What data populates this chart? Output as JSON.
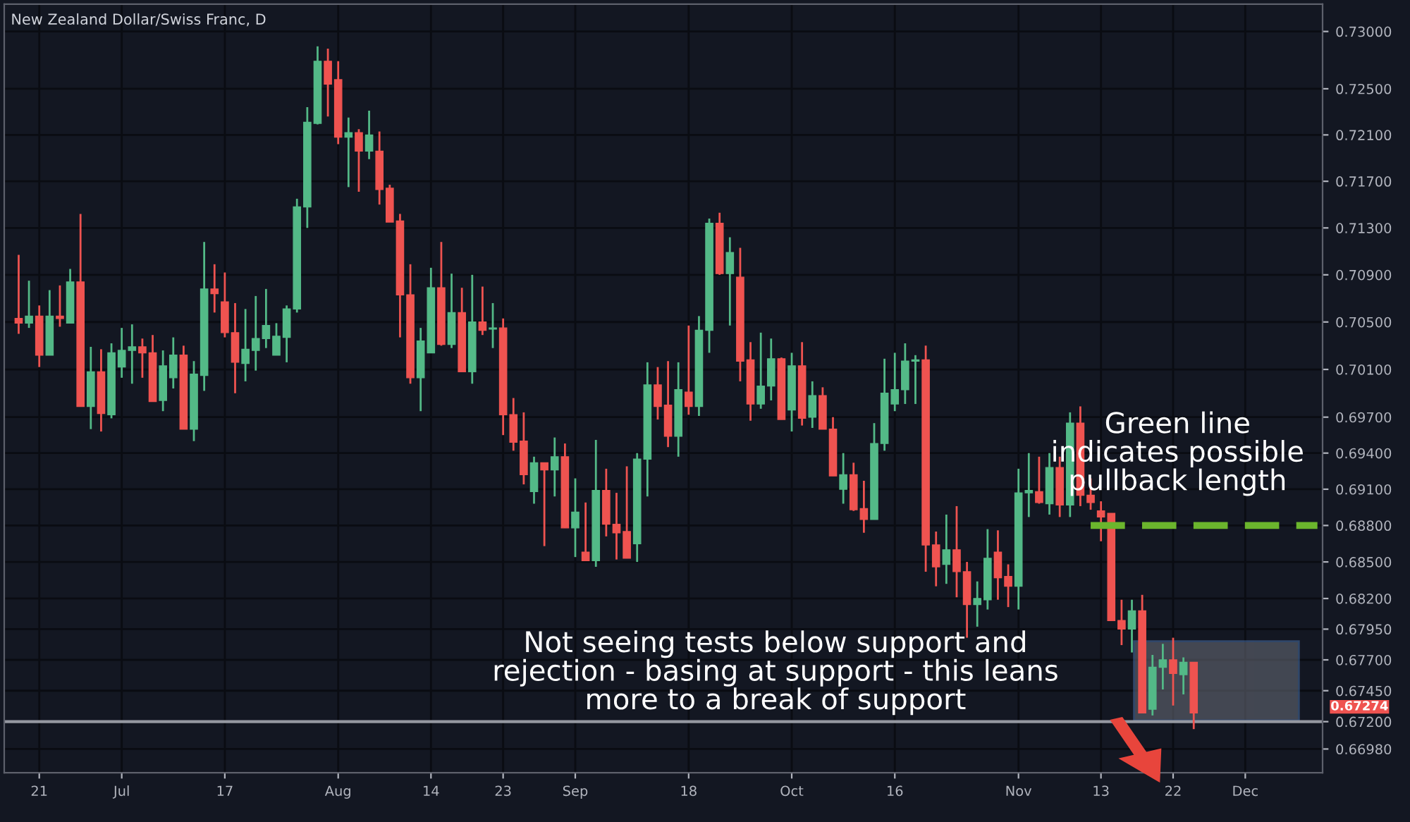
{
  "chart_data": {
    "type": "candlestick",
    "title": "New Zealand Dollar/Swiss Franc, D",
    "categories": [
      null,
      null,
      "21",
      null,
      null,
      null,
      null,
      null,
      null,
      null,
      "Jul",
      null,
      null,
      null,
      null,
      null,
      null,
      null,
      null,
      null,
      "17",
      null,
      null,
      null,
      null,
      null,
      null,
      null,
      null,
      null,
      null,
      "Aug",
      null,
      null,
      null,
      null,
      null,
      null,
      null,
      null,
      "14",
      null,
      null,
      null,
      null,
      null,
      null,
      "23",
      null,
      null,
      null,
      null,
      null,
      null,
      "Sep",
      null,
      null,
      null,
      null,
      null,
      null,
      null,
      null,
      null,
      null,
      "18",
      null,
      null,
      null,
      null,
      null,
      null,
      null,
      null,
      null,
      "Oct",
      null,
      null,
      null,
      null,
      null,
      null,
      null,
      null,
      null,
      "16",
      null,
      null,
      null,
      null,
      null,
      null,
      null,
      null,
      null,
      null,
      null,
      "Nov",
      null,
      null,
      null,
      null,
      null,
      null,
      null,
      "13",
      null,
      null,
      null,
      null,
      null,
      null,
      "22",
      null,
      null,
      null,
      null,
      null,
      null,
      "Dec",
      null,
      null,
      null,
      null,
      null,
      null,
      null
    ],
    "ohlc": [
      [
        0.7053,
        0.7107,
        0.704,
        0.7049
      ],
      [
        0.7049,
        0.7085,
        0.7045,
        0.7055
      ],
      [
        0.7055,
        0.7064,
        0.7012,
        0.7022
      ],
      [
        0.7022,
        0.7077,
        0.7022,
        0.7055
      ],
      [
        0.7055,
        0.7081,
        0.7046,
        0.7053
      ],
      [
        0.7049,
        0.7095,
        0.7049,
        0.7084
      ],
      [
        0.7084,
        0.7142,
        0.6979,
        0.6979
      ],
      [
        0.6979,
        0.7029,
        0.696,
        0.7008
      ],
      [
        0.7008,
        0.7027,
        0.6958,
        0.6973
      ],
      [
        0.6972,
        0.7032,
        0.6969,
        0.7024
      ],
      [
        0.7012,
        0.7045,
        0.7003,
        0.7026
      ],
      [
        0.7026,
        0.7048,
        0.6998,
        0.7029
      ],
      [
        0.7029,
        0.7036,
        0.7003,
        0.7024
      ],
      [
        0.7024,
        0.7039,
        0.6983,
        0.6983
      ],
      [
        0.6984,
        0.7026,
        0.6975,
        0.7013
      ],
      [
        0.7003,
        0.7037,
        0.6994,
        0.7022
      ],
      [
        0.7022,
        0.703,
        0.696,
        0.696
      ],
      [
        0.696,
        0.7017,
        0.695,
        0.7006
      ],
      [
        0.7005,
        0.7118,
        0.6992,
        0.7078
      ],
      [
        0.7078,
        0.7099,
        0.7058,
        0.7074
      ],
      [
        0.7067,
        0.7092,
        0.7037,
        0.7041
      ],
      [
        0.7041,
        0.7066,
        0.699,
        0.7016
      ],
      [
        0.7015,
        0.7061,
        0.7,
        0.7027
      ],
      [
        0.7026,
        0.7072,
        0.7009,
        0.7036
      ],
      [
        0.7036,
        0.7078,
        0.7028,
        0.7047
      ],
      [
        0.7022,
        0.7049,
        0.7022,
        0.7038
      ],
      [
        0.7037,
        0.7064,
        0.7016,
        0.7061
      ],
      [
        0.7061,
        0.7155,
        0.7058,
        0.7148
      ],
      [
        0.7148,
        0.7234,
        0.713,
        0.7221
      ],
      [
        0.722,
        0.7287,
        0.7219,
        0.7274
      ],
      [
        0.7274,
        0.7285,
        0.7226,
        0.7254
      ],
      [
        0.7258,
        0.7274,
        0.7202,
        0.7208
      ],
      [
        0.7208,
        0.7225,
        0.7165,
        0.7212
      ],
      [
        0.7212,
        0.7215,
        0.7161,
        0.7196
      ],
      [
        0.7196,
        0.7231,
        0.7189,
        0.721
      ],
      [
        0.7196,
        0.7213,
        0.715,
        0.7163
      ],
      [
        0.7164,
        0.7167,
        0.7135,
        0.7135
      ],
      [
        0.7136,
        0.7142,
        0.7037,
        0.7073
      ],
      [
        0.7073,
        0.7099,
        0.6998,
        0.7003
      ],
      [
        0.7003,
        0.7045,
        0.6975,
        0.7034
      ],
      [
        0.7024,
        0.7096,
        0.7024,
        0.7079
      ],
      [
        0.7079,
        0.7118,
        0.703,
        0.7031
      ],
      [
        0.7031,
        0.7091,
        0.7028,
        0.7058
      ],
      [
        0.7058,
        0.7079,
        0.7008,
        0.7008
      ],
      [
        0.7008,
        0.709,
        0.6998,
        0.705
      ],
      [
        0.705,
        0.708,
        0.7039,
        0.7043
      ],
      [
        0.7044,
        0.7066,
        0.7028,
        0.7045
      ],
      [
        0.7045,
        0.7053,
        0.6955,
        0.6972
      ],
      [
        0.6972,
        0.6986,
        0.6942,
        0.6949
      ],
      [
        0.695,
        0.6974,
        0.6914,
        0.6922
      ],
      [
        0.6908,
        0.6937,
        0.6898,
        0.6932
      ],
      [
        0.6932,
        0.6932,
        0.6863,
        0.6926
      ],
      [
        0.6926,
        0.6953,
        0.6904,
        0.6937
      ],
      [
        0.6937,
        0.6948,
        0.6878,
        0.6878
      ],
      [
        0.6878,
        0.6919,
        0.6854,
        0.6891
      ],
      [
        0.6858,
        0.6899,
        0.6851,
        0.6851
      ],
      [
        0.6851,
        0.6951,
        0.6846,
        0.6909
      ],
      [
        0.6909,
        0.6927,
        0.6871,
        0.6881
      ],
      [
        0.6881,
        0.6907,
        0.6852,
        0.6874
      ],
      [
        0.6875,
        0.6929,
        0.6853,
        0.6853
      ],
      [
        0.6865,
        0.694,
        0.685,
        0.6935
      ],
      [
        0.6935,
        0.7016,
        0.6904,
        0.6997
      ],
      [
        0.6997,
        0.7012,
        0.6968,
        0.6979
      ],
      [
        0.698,
        0.7017,
        0.6945,
        0.6954
      ],
      [
        0.6954,
        0.7016,
        0.6937,
        0.6993
      ],
      [
        0.6991,
        0.7047,
        0.6972,
        0.6979
      ],
      [
        0.6979,
        0.7055,
        0.6971,
        0.7043
      ],
      [
        0.7043,
        0.7138,
        0.7024,
        0.7134
      ],
      [
        0.7134,
        0.7143,
        0.709,
        0.7091
      ],
      [
        0.7091,
        0.7122,
        0.7047,
        0.7109
      ],
      [
        0.7088,
        0.7113,
        0.7,
        0.7017
      ],
      [
        0.7018,
        0.7033,
        0.6967,
        0.6981
      ],
      [
        0.6981,
        0.7041,
        0.6977,
        0.6996
      ],
      [
        0.6996,
        0.7036,
        0.6984,
        0.7019
      ],
      [
        0.7019,
        0.702,
        0.6968,
        0.6968
      ],
      [
        0.6976,
        0.7024,
        0.6958,
        0.7013
      ],
      [
        0.7013,
        0.7033,
        0.6963,
        0.6969
      ],
      [
        0.697,
        0.7,
        0.6961,
        0.6988
      ],
      [
        0.6988,
        0.6995,
        0.696,
        0.696
      ],
      [
        0.696,
        0.697,
        0.6921,
        0.6921
      ],
      [
        0.691,
        0.694,
        0.6898,
        0.6922
      ],
      [
        0.6922,
        0.6932,
        0.6892,
        0.6893
      ],
      [
        0.6894,
        0.6917,
        0.6874,
        0.6885
      ],
      [
        0.6885,
        0.6965,
        0.6885,
        0.6948
      ],
      [
        0.6948,
        0.7019,
        0.6942,
        0.699
      ],
      [
        0.6981,
        0.7024,
        0.6975,
        0.6993
      ],
      [
        0.6993,
        0.7032,
        0.6981,
        0.7017
      ],
      [
        0.7017,
        0.7022,
        0.6981,
        0.7018
      ],
      [
        0.7018,
        0.703,
        0.6842,
        0.6864
      ],
      [
        0.6864,
        0.6875,
        0.683,
        0.6846
      ],
      [
        0.6848,
        0.6889,
        0.6832,
        0.686
      ],
      [
        0.686,
        0.6896,
        0.6821,
        0.6842
      ],
      [
        0.6842,
        0.685,
        0.6788,
        0.6815
      ],
      [
        0.6815,
        0.6834,
        0.6797,
        0.682
      ],
      [
        0.6819,
        0.6877,
        0.6811,
        0.6853
      ],
      [
        0.6858,
        0.6876,
        0.6819,
        0.6837
      ],
      [
        0.6838,
        0.6848,
        0.6813,
        0.683
      ],
      [
        0.683,
        0.6927,
        0.6811,
        0.6907
      ],
      [
        0.6907,
        0.694,
        0.6887,
        0.6909
      ],
      [
        0.6908,
        0.6937,
        0.6898,
        0.6899
      ],
      [
        0.6898,
        0.694,
        0.6889,
        0.6928
      ],
      [
        0.6928,
        0.6937,
        0.6887,
        0.6897
      ],
      [
        0.6897,
        0.6974,
        0.6887,
        0.6965
      ],
      [
        0.6965,
        0.6979,
        0.6896,
        0.6905
      ],
      [
        0.6905,
        0.6919,
        0.6893,
        0.6899
      ],
      [
        0.6892,
        0.69,
        0.6867,
        0.6887
      ],
      [
        0.689,
        0.689,
        0.6802,
        0.6802
      ],
      [
        0.6802,
        0.6819,
        0.6782,
        0.6795
      ],
      [
        0.6795,
        0.6819,
        0.6776,
        0.681
      ],
      [
        0.681,
        0.6823,
        0.6727,
        0.6727
      ],
      [
        0.673,
        0.6774,
        0.6725,
        0.6764
      ],
      [
        0.6764,
        0.6783,
        0.6746,
        0.677
      ],
      [
        0.677,
        0.6788,
        0.6733,
        0.6759
      ],
      [
        0.6758,
        0.6772,
        0.6742,
        0.6768
      ],
      [
        0.6768,
        0.6768,
        0.6714,
        0.6727
      ],
      null,
      null,
      null,
      null,
      null,
      null,
      null,
      null,
      null,
      null,
      null,
      null
    ],
    "colors": [
      "#ef5350",
      "#53b987",
      "#ef5350",
      "#53b987",
      "#ef5350",
      "#53b987",
      "#ef5350",
      "#53b987",
      "#ef5350",
      "#53b987",
      "#53b987",
      "#53b987",
      "#ef5350",
      "#ef5350",
      "#53b987",
      "#53b987",
      "#ef5350",
      "#53b987",
      "#53b987",
      "#ef5350",
      "#ef5350",
      "#ef5350",
      "#53b987",
      "#53b987",
      "#53b987",
      "#53b987",
      "#53b987",
      "#53b987",
      "#53b987",
      "#53b987",
      "#ef5350",
      "#ef5350",
      "#53b987",
      "#ef5350",
      "#53b987",
      "#ef5350",
      "#ef5350",
      "#ef5350",
      "#ef5350",
      "#53b987",
      "#53b987",
      "#ef5350",
      "#53b987",
      "#ef5350",
      "#53b987",
      "#ef5350",
      "#53b987",
      "#ef5350",
      "#ef5350",
      "#ef5350",
      "#53b987",
      "#ef5350",
      "#53b987",
      "#ef5350",
      "#53b987",
      "#ef5350",
      "#53b987",
      "#ef5350",
      "#ef5350",
      "#ef5350",
      "#53b987",
      "#53b987",
      "#ef5350",
      "#ef5350",
      "#53b987",
      "#ef5350",
      "#53b987",
      "#53b987",
      "#ef5350",
      "#53b987",
      "#ef5350",
      "#ef5350",
      "#53b987",
      "#53b987",
      "#ef5350",
      "#53b987",
      "#ef5350",
      "#53b987",
      "#ef5350",
      "#ef5350",
      "#53b987",
      "#ef5350",
      "#ef5350",
      "#53b987",
      "#53b987",
      "#53b987",
      "#53b987",
      "#53b987",
      "#ef5350",
      "#ef5350",
      "#53b987",
      "#ef5350",
      "#ef5350",
      "#53b987",
      "#53b987",
      "#ef5350",
      "#ef5350",
      "#53b987",
      "#53b987",
      "#ef5350",
      "#53b987",
      "#ef5350",
      "#53b987",
      "#ef5350",
      "#ef5350",
      "#ef5350",
      "#ef5350",
      "#ef5350",
      "#53b987",
      "#ef5350",
      "#53b987",
      "#53b987",
      "#ef5350",
      "#53b987",
      "#ef5350",
      null,
      null,
      null,
      null,
      null,
      null,
      null,
      null,
      null,
      null,
      null,
      null
    ],
    "series": [
      {
        "type": "line",
        "color": "#6bb52d",
        "line_style": "dashed",
        "values": [
          null,
          null,
          null,
          null,
          null,
          null,
          null,
          null,
          null,
          null,
          null,
          null,
          null,
          null,
          null,
          null,
          null,
          null,
          null,
          null,
          null,
          null,
          null,
          null,
          null,
          null,
          null,
          null,
          null,
          null,
          null,
          null,
          null,
          null,
          null,
          null,
          null,
          null,
          null,
          null,
          null,
          null,
          null,
          null,
          null,
          null,
          null,
          null,
          null,
          null,
          null,
          null,
          null,
          null,
          null,
          null,
          null,
          null,
          null,
          null,
          null,
          null,
          null,
          null,
          null,
          null,
          null,
          null,
          null,
          null,
          null,
          null,
          null,
          null,
          null,
          null,
          null,
          null,
          null,
          null,
          null,
          null,
          null,
          null,
          null,
          null,
          null,
          null,
          null,
          null,
          null,
          null,
          null,
          null,
          null,
          null,
          null,
          null,
          null,
          null,
          null,
          null,
          null,
          null,
          0.688,
          0.688,
          0.688,
          0.688,
          0.688,
          0.688,
          0.688,
          0.688,
          0.688,
          0.688,
          0.688,
          0.688,
          0.688,
          0.688,
          0.688,
          0.688,
          0.688,
          0.688,
          0.688,
          0.688,
          0.688,
          0.688,
          0.688
        ]
      }
    ],
    "log": true,
    "ylim": [
      0.6679,
      0.7324
    ],
    "yticks": [
      {
        "value": 0.73,
        "label": "0.73000"
      },
      {
        "value": 0.725,
        "label": "0.72500"
      },
      {
        "value": 0.721,
        "label": "0.72100"
      },
      {
        "value": 0.717,
        "label": "0.71700"
      },
      {
        "value": 0.713,
        "label": "0.71300"
      },
      {
        "value": 0.709,
        "label": "0.70900"
      },
      {
        "value": 0.705,
        "label": "0.70500"
      },
      {
        "value": 0.701,
        "label": "0.70100"
      },
      {
        "value": 0.697,
        "label": "0.69700"
      },
      {
        "value": 0.694,
        "label": "0.69400"
      },
      {
        "value": 0.691,
        "label": "0.69100"
      },
      {
        "value": 0.688,
        "label": "0.68800"
      },
      {
        "value": 0.685,
        "label": "0.68500"
      },
      {
        "value": 0.682,
        "label": "0.68200"
      },
      {
        "value": 0.6795,
        "label": "0.67950"
      },
      {
        "value": 0.677,
        "label": "0.67700"
      },
      {
        "value": 0.6745,
        "label": "0.67450"
      },
      {
        "value": 0.672,
        "label": "0.67200"
      },
      {
        "value": 0.6698,
        "label": "0.66980"
      }
    ],
    "grid": true,
    "ref_lines": [
      {
        "axis": "y",
        "value": 0.672,
        "color": "#9598a1"
      }
    ],
    "annotations": [
      "Not seeing tests below support and\nrejection - basing at support - this leans\nmore to a break of support",
      "Green line\nindicates possible\npullback length",
      "0.67274"
    ]
  }
}
